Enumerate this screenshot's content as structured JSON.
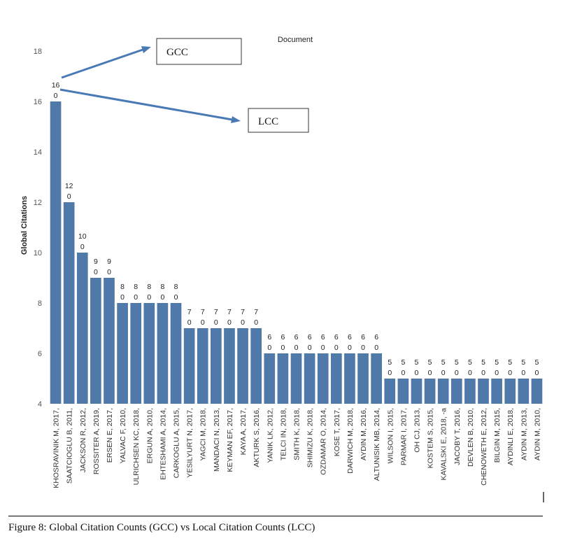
{
  "chart_data": {
    "type": "bar",
    "title": "Document",
    "ylabel": "Global Citations",
    "xlabel": "",
    "ylim": [
      4,
      18
    ],
    "yticks": [
      4,
      6,
      8,
      10,
      12,
      14,
      16,
      18
    ],
    "grid": false,
    "bar_color": "#4f79a8",
    "categories": [
      "KHOSRAVINIK M, 2017,",
      "SAATCIOGLU B, 2011,",
      "JACKSON R, 2012,",
      "ROSSITER A, 2019,",
      "ERSEN E, 2017,",
      "YALVAC F, 2010,",
      "ULRICHSEN KC, 2018,",
      "ERGUN A, 2010,",
      "EHTESHAMI A, 2014,",
      "CARKOGLU A, 2015,",
      "YESILYURT N, 2017,",
      "YAGCI M, 2018,",
      "MANDACI N, 2013,",
      "KEYMAN EF, 2017,",
      "KAYA A, 2017,",
      "AKTURK S, 2016,",
      "YANIK LK, 2012,",
      "TELCI IN, 2018,",
      "SMITH K, 2018,",
      "SHIMIZU K, 2018,",
      "OZDAMAR O, 2014,",
      "KOSE T, 2017,",
      "DARWICH M, 2018,",
      "AYDIN M, 2016,",
      "ALTUNISIK MB, 2014,",
      "WILSON I, 2015,",
      "PARMAR I, 2017,",
      "OH CJ, 2013,",
      "KOSTEM S, 2015,",
      "KAVALSKI E, 2018, -a",
      "JACOBY T, 2016,",
      "DEVLEN B, 2010,",
      "CHENOWETH E, 2012,",
      "BILGIN M, 2015,",
      "AYDINLI E, 2018,",
      "AYDIN M, 2013,",
      "AYDIN M, 2010,"
    ],
    "series": [
      {
        "values": [
          16,
          12,
          10,
          9,
          9,
          8,
          8,
          8,
          8,
          8,
          7,
          7,
          7,
          7,
          7,
          7,
          6,
          6,
          6,
          6,
          6,
          6,
          6,
          6,
          6,
          5,
          5,
          5,
          5,
          5,
          5,
          5,
          5,
          5,
          5,
          5,
          5
        ]
      },
      {
        "values": [
          0,
          0,
          0,
          0,
          0,
          0,
          0,
          0,
          0,
          0,
          0,
          0,
          0,
          0,
          0,
          0,
          0,
          0,
          0,
          0,
          0,
          0,
          0,
          0,
          0,
          0,
          0,
          0,
          0,
          0,
          0,
          0,
          0,
          0,
          0,
          0,
          0
        ]
      }
    ],
    "annotations": [
      {
        "text": "GCC"
      },
      {
        "text": "LCC"
      }
    ],
    "arrow_color": "#4a7ab5"
  },
  "caption": "Figure 8: Global Citation Counts (GCC) vs Local Citation Counts (LCC)"
}
